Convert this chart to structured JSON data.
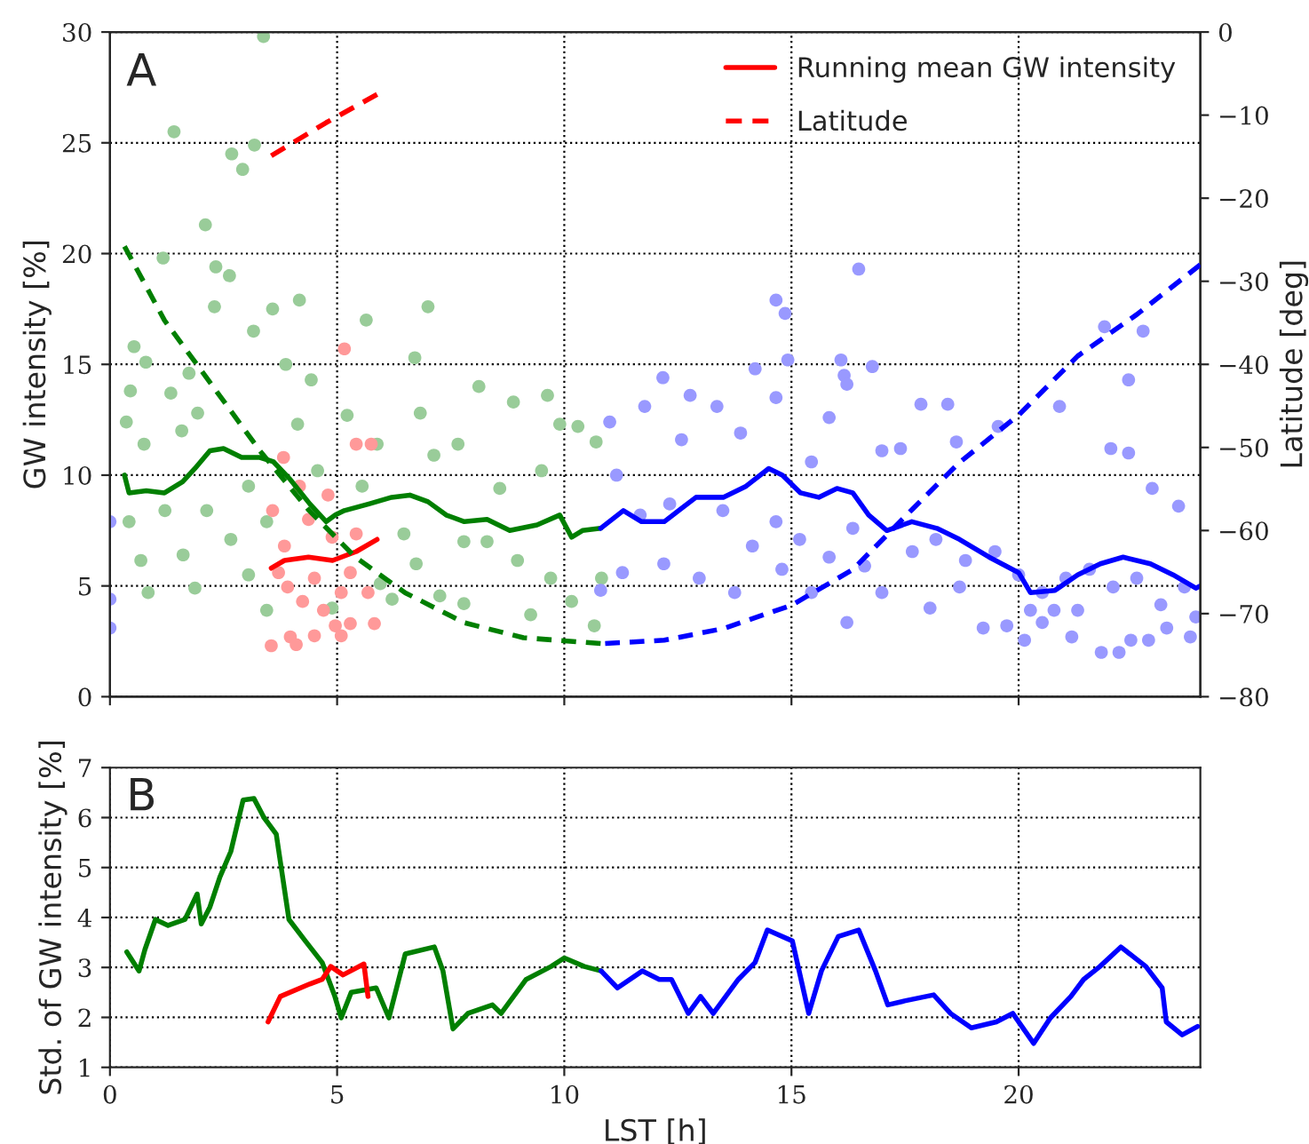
{
  "chart_data": [
    {
      "type": "scatter",
      "annotations": [
        "A"
      ],
      "ylabel": "GW intensity [%]",
      "y2label": "Latitude [deg]",
      "xlim": [
        0,
        24
      ],
      "xticks": [
        0,
        5,
        10,
        15,
        20
      ],
      "ylim": [
        0,
        30
      ],
      "yticks": [
        0,
        5,
        10,
        15,
        20,
        25,
        30
      ],
      "y2lim": [
        -80,
        0
      ],
      "y2ticks": [
        {
          "value": -80,
          "label": "−80"
        },
        {
          "value": -70,
          "label": "−70"
        },
        {
          "value": -60,
          "label": "−60"
        },
        {
          "value": -50,
          "label": "−50"
        },
        {
          "value": -40,
          "label": "−40"
        },
        {
          "value": -30,
          "label": "−30"
        },
        {
          "value": -20,
          "label": "−20"
        },
        {
          "value": -10,
          "label": "−10"
        },
        0
      ],
      "tick_labels": "y",
      "grid": true,
      "legend": "top right",
      "series": [
        {
          "color": "#99cc99",
          "x": [
            3.38,
            1.41,
            3.18,
            2.68,
            2.92,
            2.1,
            1.17,
            2.33,
            2.63,
            2.3,
            4.17,
            7.0,
            5.64,
            3.58,
            6.71,
            0.53,
            0.79,
            3.16,
            0.45,
            1.74,
            3.87,
            8.12,
            9.63,
            8.88,
            1.34,
            1.93,
            4.43,
            5.22,
            6.83,
            9.9,
            10.3,
            0.36,
            0.75,
            1.58,
            4.13,
            7.66,
            5.88,
            9.5,
            7.13,
            8.58,
            10.7,
            0.42,
            0.68,
            1.21,
            1.61,
            2.13,
            2.66,
            3.05,
            1.87,
            0.84,
            3.45,
            5.95,
            6.21,
            6.74,
            7.26,
            7.79,
            8.3,
            8.97,
            9.26,
            9.7,
            10.16,
            10.66,
            10.82,
            7.79,
            5.55,
            6.47,
            4.89,
            3.45,
            3.05,
            4.57
          ],
          "values": [
            29.8,
            25.5,
            24.9,
            24.5,
            23.8,
            21.3,
            19.8,
            19.4,
            19.0,
            17.6,
            17.9,
            17.6,
            17.0,
            17.5,
            15.3,
            15.8,
            15.1,
            16.5,
            13.8,
            14.6,
            15.0,
            14.0,
            13.6,
            13.3,
            13.7,
            12.8,
            14.3,
            12.7,
            12.8,
            12.3,
            12.2,
            12.4,
            11.4,
            12.0,
            12.3,
            11.4,
            11.4,
            10.2,
            10.9,
            9.4,
            11.5,
            7.9,
            6.15,
            8.4,
            6.4,
            8.4,
            7.1,
            5.5,
            4.9,
            4.7,
            3.9,
            5.1,
            4.4,
            6.0,
            4.55,
            7.0,
            7.0,
            6.15,
            3.7,
            5.35,
            4.3,
            3.2,
            5.35,
            4.2,
            9.5,
            7.35,
            4.0,
            7.9,
            9.5,
            10.2
          ]
        },
        {
          "color": "#9999ff",
          "x": [
            16.48,
            14.66,
            14.86,
            14.92,
            16.09,
            16.78,
            16.16,
            16.22,
            14.2,
            12.17,
            21.89,
            22.74,
            22.42,
            12.77,
            11.77,
            13.36,
            14.66,
            15.83,
            17.85,
            18.44,
            19.55,
            20.9,
            18.63,
            17.4,
            12.58,
            13.88,
            15.44,
            16.99,
            22.03,
            22.42,
            22.94,
            23.52,
            11.15,
            11.67,
            12.32,
            13.49,
            14.14,
            14.66,
            15.18,
            15.83,
            16.35,
            16.61,
            17.66,
            18.18,
            18.83,
            19.48,
            20.0,
            20.52,
            21.04,
            21.56,
            22.08,
            22.6,
            23.13,
            23.65,
            23.9,
            11.28,
            12.19,
            12.97,
            13.75,
            14.79,
            15.44,
            16.22,
            16.99,
            18.05,
            18.7,
            19.22,
            19.74,
            20.13,
            20.52,
            20.78,
            21.17,
            21.82,
            22.21,
            22.47,
            22.86,
            23.26,
            23.78,
            21.3,
            20.26,
            11.0,
            10.8,
            0.0,
            0.0,
            0.0
          ],
          "values": [
            19.3,
            17.9,
            17.3,
            15.2,
            15.2,
            14.9,
            14.5,
            14.1,
            14.8,
            14.4,
            16.7,
            16.5,
            14.3,
            13.6,
            13.1,
            13.1,
            13.5,
            12.6,
            13.2,
            13.2,
            12.2,
            13.1,
            11.5,
            11.2,
            11.6,
            11.9,
            10.6,
            11.1,
            11.2,
            11.0,
            9.4,
            8.6,
            10.0,
            8.2,
            8.7,
            8.4,
            6.8,
            7.9,
            7.1,
            6.3,
            7.6,
            5.9,
            6.55,
            7.1,
            6.15,
            6.55,
            5.5,
            4.7,
            5.35,
            5.75,
            4.95,
            5.35,
            4.15,
            4.95,
            3.6,
            5.6,
            6.0,
            5.35,
            4.7,
            5.75,
            4.7,
            3.35,
            4.7,
            4.0,
            4.95,
            3.1,
            3.2,
            2.55,
            3.35,
            3.9,
            2.7,
            2.0,
            2.0,
            2.55,
            2.55,
            3.1,
            2.7,
            3.9,
            3.9,
            12.4,
            4.8,
            7.9,
            4.4,
            3.1
          ]
        },
        {
          "color": "#ff9999",
          "x": [
            5.16,
            5.42,
            5.75,
            3.82,
            4.17,
            4.8,
            3.58,
            4.37,
            5.42,
            3.84,
            4.89,
            3.71,
            4.5,
            5.29,
            3.91,
            5.09,
            5.68,
            4.24,
            4.7,
            5.29,
            5.82,
            4.96,
            3.97,
            4.5,
            5.09,
            3.55,
            4.1
          ],
          "values": [
            15.7,
            11.4,
            11.4,
            10.8,
            9.5,
            9.1,
            8.4,
            8.0,
            7.35,
            6.8,
            7.2,
            5.6,
            5.35,
            5.6,
            4.95,
            4.7,
            4.7,
            4.3,
            3.9,
            3.3,
            3.3,
            3.2,
            2.7,
            2.75,
            2.75,
            2.3,
            2.35
          ]
        },
        {
          "type": "line",
          "color": "#007f00",
          "line_style": "solid",
          "x": [
            0.32,
            0.42,
            0.8,
            1.2,
            1.6,
            1.87,
            2.2,
            2.5,
            2.9,
            3.3,
            3.6,
            3.97,
            4.4,
            4.76,
            4.96,
            5.16,
            5.7,
            6.2,
            6.6,
            7.0,
            7.4,
            7.8,
            8.3,
            8.8,
            9.4,
            9.9,
            10.16,
            10.4,
            10.8
          ],
          "values": [
            10.0,
            9.2,
            9.3,
            9.2,
            9.7,
            10.3,
            11.1,
            11.2,
            10.8,
            10.8,
            10.6,
            9.8,
            8.7,
            7.9,
            8.2,
            8.4,
            8.7,
            9.0,
            9.1,
            8.8,
            8.2,
            7.9,
            8.0,
            7.5,
            7.75,
            8.2,
            7.2,
            7.5,
            7.6
          ]
        },
        {
          "type": "line",
          "color": "#0000ff",
          "line_style": "solid",
          "x": [
            10.8,
            11.3,
            11.7,
            12.2,
            12.9,
            13.5,
            14.0,
            14.5,
            14.8,
            15.2,
            15.6,
            16.0,
            16.35,
            16.7,
            17.1,
            17.65,
            18.2,
            18.7,
            19.35,
            20.0,
            20.26,
            20.8,
            21.3,
            21.8,
            22.3,
            22.9,
            23.4,
            23.9,
            24.0
          ],
          "values": [
            7.6,
            8.4,
            7.9,
            7.9,
            9.0,
            9.0,
            9.5,
            10.3,
            10.0,
            9.2,
            9.0,
            9.4,
            9.2,
            8.2,
            7.5,
            7.9,
            7.6,
            7.1,
            6.3,
            5.6,
            4.7,
            4.8,
            5.5,
            6.0,
            6.3,
            6.0,
            5.5,
            4.9,
            5.0
          ]
        },
        {
          "type": "line",
          "name": "Running mean GW intensity",
          "color": "#ff0000",
          "line_style": "solid",
          "x": [
            3.55,
            3.84,
            4.37,
            4.9,
            5.42,
            5.88
          ],
          "values": [
            5.8,
            6.15,
            6.3,
            6.15,
            6.55,
            7.1
          ]
        },
        {
          "type": "line",
          "axis": "y2",
          "color": "#007f00",
          "line_style": "dashed",
          "x": [
            0.32,
            1.2,
            2.26,
            3.3,
            4.37,
            5.4,
            6.5,
            7.8,
            9.1,
            10.8
          ],
          "values": [
            -25.8,
            -34.7,
            -42.6,
            -50.4,
            -57.5,
            -63.2,
            -67.5,
            -71.1,
            -72.9,
            -73.6
          ]
        },
        {
          "type": "line",
          "axis": "y2",
          "color": "#0000ff",
          "line_style": "dashed",
          "x": [
            10.9,
            12.2,
            13.5,
            15.0,
            16.35,
            17.65,
            18.7,
            20.0,
            21.3,
            22.6,
            24.0
          ],
          "values": [
            -73.6,
            -73.2,
            -71.8,
            -69.0,
            -64.7,
            -57.5,
            -51.8,
            -46.1,
            -39.0,
            -34.0,
            -28.0
          ]
        },
        {
          "type": "line",
          "axis": "y2",
          "name": "Latitude",
          "color": "#ff0000",
          "line_style": "dashed",
          "x": [
            3.55,
            4.76,
            5.88
          ],
          "values": [
            -14.9,
            -10.9,
            -7.5
          ]
        }
      ]
    },
    {
      "type": "line",
      "annotations": [
        "B"
      ],
      "xlabel": "LST [h]",
      "ylabel": "Std. of GW intensity [%]",
      "xlim": [
        0,
        24
      ],
      "xticks": [
        0,
        5,
        10,
        15,
        20
      ],
      "ylim": [
        1,
        7
      ],
      "yticks": [
        1,
        2,
        3,
        4,
        5,
        6,
        7
      ],
      "grid": true,
      "series": [
        {
          "color": "#007f00",
          "x": [
            0.37,
            0.64,
            0.77,
            1.0,
            1.28,
            1.65,
            1.92,
            2.01,
            2.2,
            2.42,
            2.66,
            2.93,
            3.17,
            3.39,
            3.66,
            3.94,
            4.3,
            4.67,
            4.95,
            5.09,
            5.31,
            5.86,
            6.14,
            6.5,
            7.14,
            7.33,
            7.55,
            7.88,
            8.42,
            8.61,
            9.16,
            9.71,
            10.0,
            10.44,
            10.81
          ],
          "values": [
            3.31,
            2.93,
            3.36,
            3.96,
            3.84,
            3.96,
            4.47,
            3.87,
            4.21,
            4.81,
            5.32,
            6.35,
            6.38,
            6.0,
            5.67,
            3.96,
            3.53,
            3.1,
            2.42,
            1.99,
            2.5,
            2.59,
            1.99,
            3.27,
            3.41,
            2.93,
            1.77,
            2.08,
            2.25,
            2.08,
            2.76,
            3.02,
            3.19,
            3.02,
            2.93
          ]
        },
        {
          "color": "#0000ff",
          "x": [
            10.81,
            11.17,
            11.72,
            12.09,
            12.36,
            12.73,
            13.0,
            13.28,
            13.83,
            14.2,
            14.47,
            15.02,
            15.38,
            15.66,
            16.03,
            16.48,
            16.85,
            17.12,
            17.49,
            18.13,
            18.5,
            18.96,
            19.51,
            19.87,
            20.33,
            20.7,
            21.15,
            21.43,
            21.79,
            22.25,
            22.8,
            23.16,
            23.25,
            23.6,
            23.94
          ],
          "values": [
            2.93,
            2.59,
            2.93,
            2.76,
            2.76,
            2.08,
            2.42,
            2.08,
            2.76,
            3.1,
            3.75,
            3.53,
            2.08,
            2.93,
            3.62,
            3.75,
            2.93,
            2.25,
            2.33,
            2.45,
            2.08,
            1.79,
            1.91,
            2.08,
            1.48,
            1.99,
            2.42,
            2.76,
            3.02,
            3.41,
            3.02,
            2.59,
            1.91,
            1.65,
            1.82
          ]
        },
        {
          "color": "#ff0000",
          "x": [
            3.48,
            3.75,
            4.4,
            4.67,
            4.86,
            5.13,
            5.59,
            5.68
          ],
          "values": [
            1.91,
            2.42,
            2.67,
            2.76,
            3.02,
            2.85,
            3.07,
            2.42
          ]
        }
      ]
    }
  ]
}
